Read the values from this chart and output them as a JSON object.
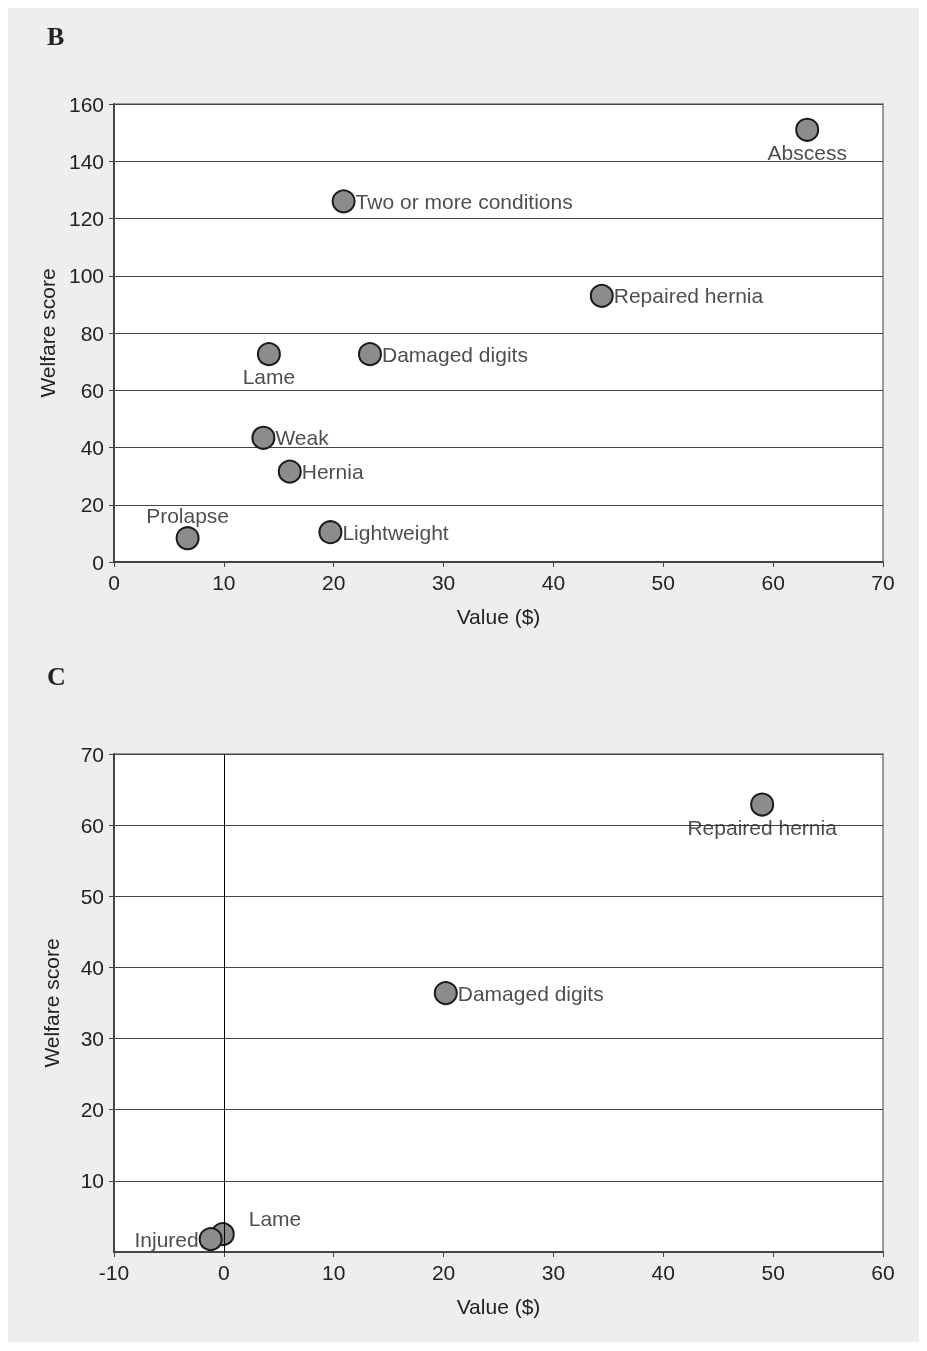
{
  "chart_data": [
    {
      "type": "scatter",
      "title": "B",
      "xlabel": "Value ($)",
      "ylabel": "Welfare score",
      "xlim": [
        0,
        70
      ],
      "xticks": [
        0,
        10,
        20,
        30,
        40,
        50,
        60,
        70
      ],
      "ylim": [
        0,
        160
      ],
      "yticks": [
        0,
        20,
        40,
        60,
        80,
        100,
        120,
        140,
        160
      ],
      "grid": "y",
      "marker": "circle",
      "series": [
        {
          "color": "#8c8c8c",
          "x": [
            63.1,
            20.9,
            44.4,
            23.3,
            14.1,
            13.6,
            16.0,
            6.7,
            19.7
          ],
          "values": [
            151,
            126,
            93,
            72.6,
            72.6,
            43.4,
            31.6,
            8.3,
            10.4
          ]
        }
      ],
      "annotations": [
        {
          "text": "Abscess",
          "x": 63.1,
          "y": 151
        },
        {
          "text": "Two or more conditions",
          "x": 20.9,
          "y": 126
        },
        {
          "text": "Repaired hernia",
          "x": 44.4,
          "y": 93
        },
        {
          "text": "Damaged digits",
          "x": 23.3,
          "y": 72.6
        },
        {
          "text": "Lame",
          "x": 14.1,
          "y": 72.6
        },
        {
          "text": "Weak",
          "x": 13.6,
          "y": 43.4
        },
        {
          "text": "Hernia",
          "x": 16.0,
          "y": 31.6
        },
        {
          "text": "Prolapse",
          "x": 6.7,
          "y": 8.3
        },
        {
          "text": "Lightweight",
          "x": 19.7,
          "y": 10.4
        }
      ]
    },
    {
      "type": "scatter",
      "title": "C",
      "xlabel": "Value ($)",
      "ylabel": "Welfare score",
      "xlim": [
        -10,
        60
      ],
      "xticks": [
        -10,
        0,
        10,
        20,
        30,
        40,
        50,
        60
      ],
      "ylim": [
        0,
        70
      ],
      "yticks": [
        10,
        20,
        30,
        40,
        50,
        60,
        70
      ],
      "grid": "y",
      "marker": "circle",
      "series": [
        {
          "color": "#8c8c8c",
          "x": [
            49.0,
            20.2,
            -0.1,
            -1.2
          ],
          "values": [
            62.9,
            36.4,
            2.5,
            1.8
          ]
        }
      ],
      "ref_lines": [
        {
          "axis": "x",
          "value": 0,
          "color": "#000000"
        }
      ],
      "annotations": [
        {
          "text": "Repaired hernia",
          "x": 49.0,
          "y": 62.9
        },
        {
          "text": "Damaged digits",
          "x": 20.2,
          "y": 36.4
        },
        {
          "text": "Lame",
          "x": -0.1,
          "y": 2.5
        },
        {
          "text": "Injured",
          "x": -1.2,
          "y": 1.8
        }
      ]
    }
  ]
}
